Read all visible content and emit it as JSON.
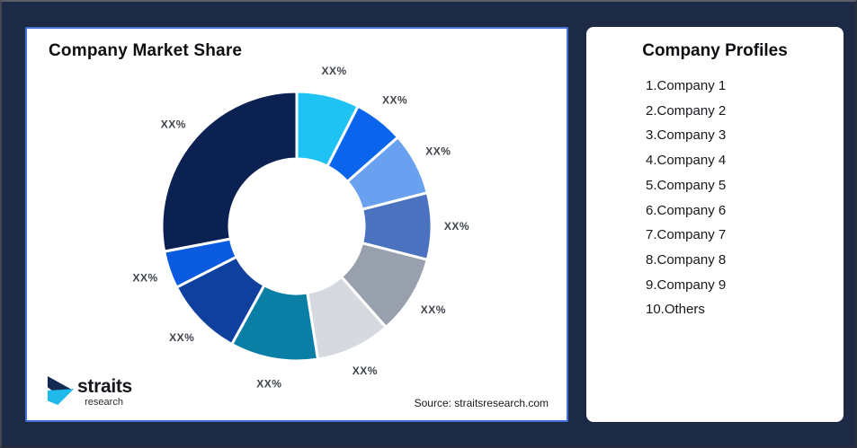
{
  "window": {
    "background_color": "#1D2A46"
  },
  "chart_card": {
    "title": "Company Market Share",
    "source": "Source: straitsresearch.com",
    "border_color": "#4472D9",
    "logo": {
      "name": "straits",
      "sub": "research",
      "navy": "#132A52",
      "cyan": "#1FB9EA"
    }
  },
  "chart_data": {
    "type": "pie",
    "variant": "donut",
    "title": "Company Market Share",
    "legend": false,
    "start_angle_deg": 0,
    "direction": "clockwise",
    "label_color": "#3F444D",
    "gap_stroke": "#ffffff",
    "segments": [
      {
        "label": "XX%",
        "value": 7.5,
        "color": "#1EC3F3"
      },
      {
        "label": "XX%",
        "value": 6.0,
        "color": "#0A64EC"
      },
      {
        "label": "XX%",
        "value": 7.5,
        "color": "#69A1F0"
      },
      {
        "label": "XX%",
        "value": 8.0,
        "color": "#4A72BE"
      },
      {
        "label": "XX%",
        "value": 9.5,
        "color": "#99A0AD"
      },
      {
        "label": "XX%",
        "value": 9.0,
        "color": "#D6D9DF"
      },
      {
        "label": "XX%",
        "value": 10.5,
        "color": "#0A7FA6"
      },
      {
        "label": "XX%",
        "value": 9.5,
        "color": "#10409E"
      },
      {
        "label": "XX%",
        "value": 4.5,
        "color": "#0A5BE0"
      },
      {
        "label": "XX%",
        "value": 28.0,
        "color": "#0B2152"
      }
    ]
  },
  "profiles": {
    "title": "Company Profiles",
    "items": [
      "1.Company 1",
      "2.Company 2",
      "3.Company 3",
      "4.Company 4",
      "5.Company 5",
      "6.Company 6",
      "7.Company 7",
      "8.Company 8",
      "9.Company 9",
      "10.Others"
    ]
  }
}
